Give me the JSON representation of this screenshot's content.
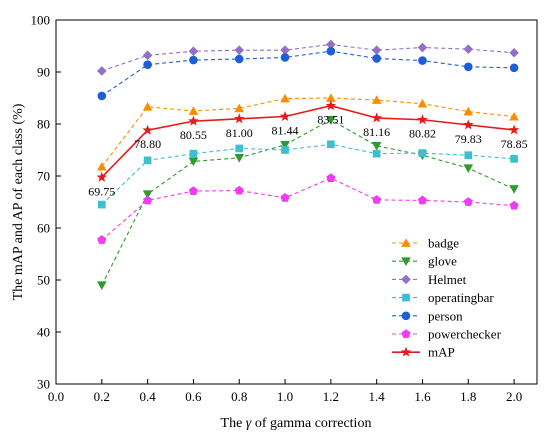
{
  "chart_data": {
    "type": "line",
    "xlabel_parts": [
      "The ",
      "γ",
      " of gamma correction"
    ],
    "ylabel": "The mAP and AP of each class (%)",
    "xlim": [
      0.0,
      2.1
    ],
    "ylim": [
      30,
      100
    ],
    "x_ticks": [
      "0.0",
      "0.2",
      "0.4",
      "0.6",
      "0.8",
      "1.0",
      "1.2",
      "1.4",
      "1.6",
      "1.8",
      "2.0"
    ],
    "y_ticks": [
      "30",
      "40",
      "50",
      "60",
      "70",
      "80",
      "90",
      "100"
    ],
    "x": [
      0.2,
      0.4,
      0.6,
      0.8,
      1.0,
      1.2,
      1.4,
      1.6,
      1.8,
      2.0
    ],
    "legend_position": "lower-right",
    "series": [
      {
        "name": "badge",
        "color": "#FF8C00",
        "marker": "triangle-up",
        "dash": true,
        "values": [
          71.8,
          83.3,
          82.5,
          83.0,
          84.9,
          85.0,
          84.6,
          83.9,
          82.4,
          81.4
        ]
      },
      {
        "name": "glove",
        "color": "#2E9B2E",
        "marker": "triangle-down",
        "dash": true,
        "values": [
          49.0,
          66.5,
          72.8,
          73.5,
          76.0,
          80.8,
          75.8,
          74.0,
          71.5,
          67.5
        ]
      },
      {
        "name": "Helmet",
        "color": "#9370C8",
        "marker": "diamond",
        "dash": true,
        "values": [
          90.2,
          93.2,
          94.0,
          94.2,
          94.2,
          95.3,
          94.2,
          94.7,
          94.4,
          93.7
        ]
      },
      {
        "name": "operatingbar",
        "color": "#3CBFCF",
        "marker": "square",
        "dash": true,
        "values": [
          64.5,
          73.0,
          74.3,
          75.3,
          75.0,
          76.1,
          74.3,
          74.4,
          74.0,
          73.3
        ]
      },
      {
        "name": "person",
        "color": "#1F5FD6",
        "marker": "circle",
        "dash": true,
        "values": [
          85.4,
          91.4,
          92.3,
          92.5,
          92.8,
          94.0,
          92.6,
          92.2,
          91.0,
          90.8
        ]
      },
      {
        "name": "powerchecker",
        "color": "#F03CF0",
        "marker": "pentagon",
        "dash": true,
        "values": [
          57.7,
          65.3,
          67.1,
          67.2,
          65.8,
          69.6,
          65.4,
          65.3,
          65.0,
          64.3
        ]
      },
      {
        "name": "mAP",
        "color": "#E8191A",
        "marker": "star",
        "dash": false,
        "values": [
          69.75,
          78.8,
          80.55,
          81.0,
          81.44,
          83.51,
          81.16,
          80.82,
          79.83,
          78.85
        ]
      }
    ],
    "annotations": [
      "69.75",
      "78.80",
      "80.55",
      "81.00",
      "81.44",
      "83.51",
      "81.16",
      "80.82",
      "79.83",
      "78.85"
    ]
  }
}
